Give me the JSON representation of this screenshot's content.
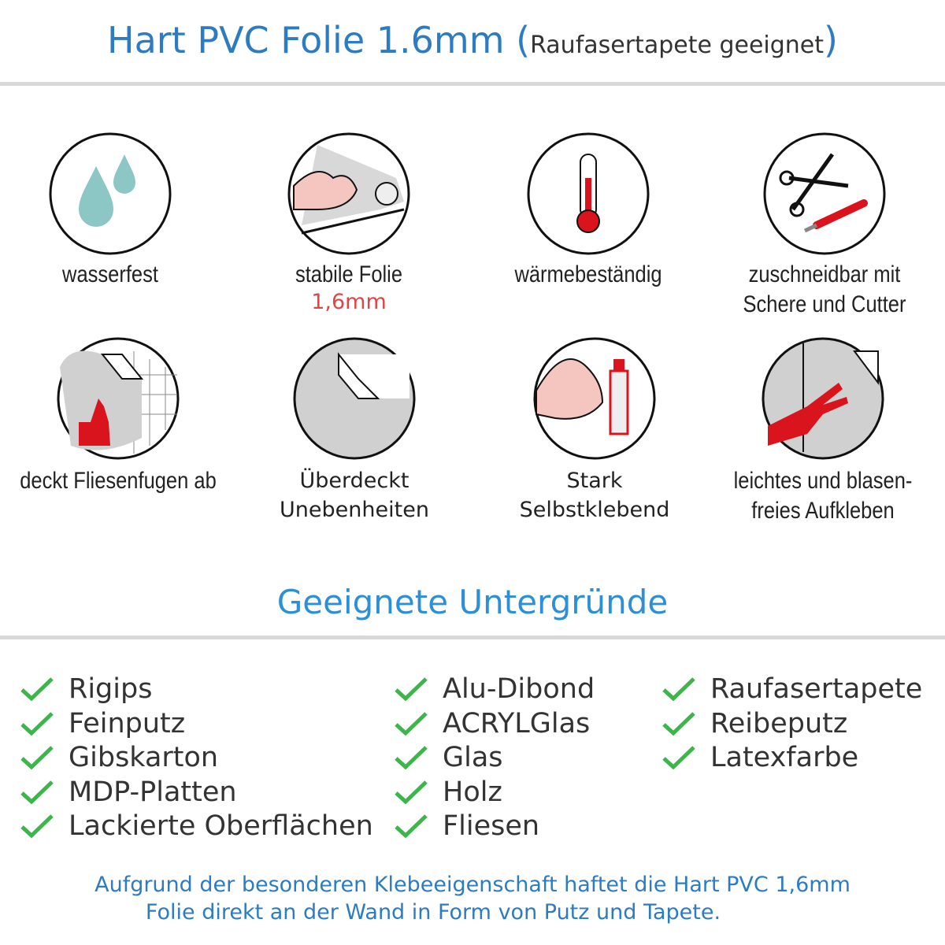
{
  "header": {
    "title": "Hart PVC Folie 1.6mm",
    "title_paren_open": "(",
    "subtitle": "Raufasertapete geeignet",
    "title_paren_close": ")"
  },
  "colors": {
    "accent": "#2d7cc1",
    "check": "#3cb54a",
    "highlight": "#e04444",
    "icon_red": "#d9141c",
    "water": "#8cc7c5"
  },
  "features": [
    {
      "icon": "water-drops-icon",
      "lines": [
        "wasserfest"
      ]
    },
    {
      "icon": "strong-arm-foil-icon",
      "lines": [
        "stabile Folie"
      ],
      "highlight": "1,6mm"
    },
    {
      "icon": "thermometer-icon",
      "lines": [
        "wärmebeständig"
      ]
    },
    {
      "icon": "scissors-cutter-icon",
      "lines": [
        "zuschneidbar mit",
        "Schere und Cutter"
      ]
    },
    {
      "icon": "tile-thumbs-up-icon",
      "lines": [
        "deckt Fliesenfugen ab"
      ]
    },
    {
      "icon": "foil-peel-icon",
      "lines": [
        "Überdeckt",
        "Unebenheiten"
      ]
    },
    {
      "icon": "arm-glue-icon",
      "lines": [
        "Stark",
        "Selbstklebend"
      ]
    },
    {
      "icon": "hand-smooth-icon",
      "lines": [
        "leichtes und blasen-",
        "freies Aufkleben"
      ]
    }
  ],
  "section": {
    "title": "Geeignete Untergründe"
  },
  "surfaces": [
    [
      "Rigips",
      "Feinputz",
      "Gibskarton",
      "MDP-Platten",
      "Lackierte Oberflächen"
    ],
    [
      "Alu-Dibond",
      "ACRYLGlas",
      "Glas",
      "Holz",
      "Fliesen"
    ],
    [
      "Raufasertapete",
      "Reibeputz",
      "Latexfarbe"
    ]
  ],
  "footer": {
    "line1": "Aufgrund der besonderen Klebeeigenschaft haftet die Hart PVC 1,6mm",
    "line2": "Folie direkt an der Wand in Form von Putz und Tapete."
  }
}
